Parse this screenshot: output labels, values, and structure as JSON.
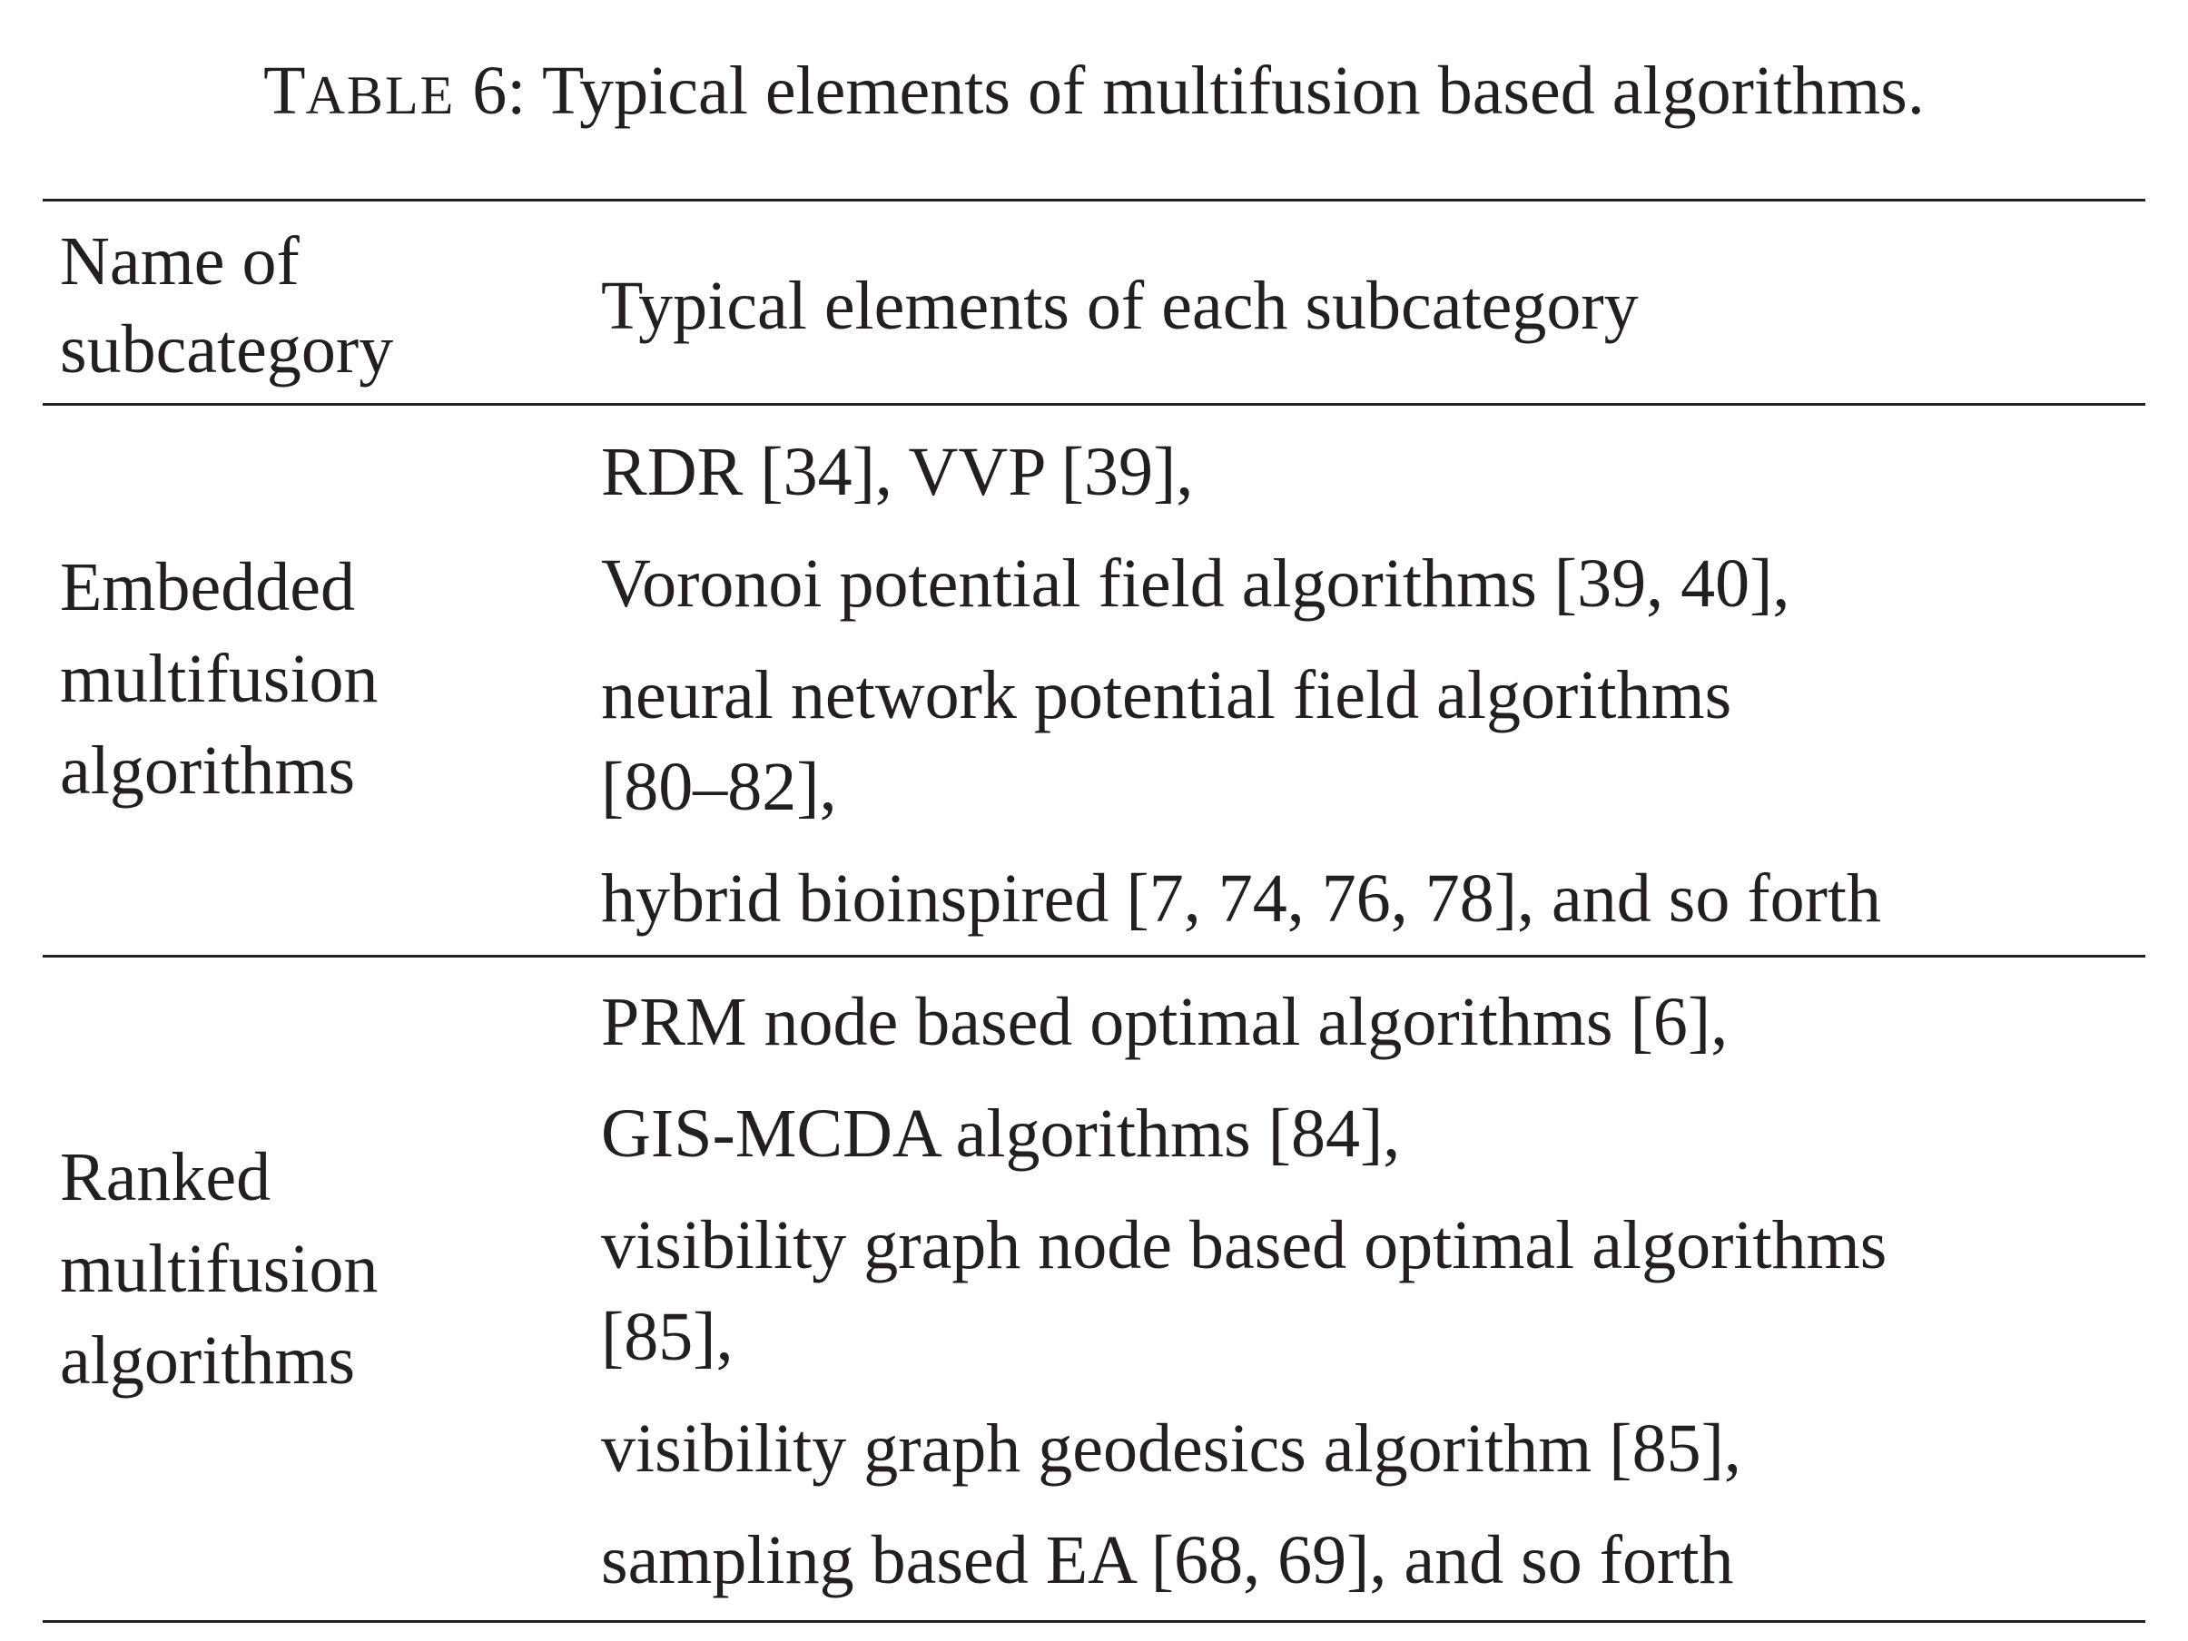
{
  "caption": {
    "label_T": "T",
    "label_rest": "ABLE",
    "number": "6:",
    "text": "Typical elements of multifusion based algorithms."
  },
  "table": {
    "headers": {
      "col1_line1": "Name of",
      "col1_line2": "subcategory",
      "col2": "Typical elements of each subcategory"
    },
    "rows": [
      {
        "name_lines": [
          "Embedded",
          "multifusion",
          "algorithms"
        ],
        "elements": [
          [
            "RDR [34], VVP [39],"
          ],
          [
            "Voronoi potential field algorithms [39, 40],"
          ],
          [
            "neural network potential field algorithms",
            "[80–82],"
          ],
          [
            "hybrid bioinspired [7, 74, 76, 78], and so forth"
          ]
        ]
      },
      {
        "name_lines": [
          "Ranked",
          "multifusion",
          "algorithms"
        ],
        "elements": [
          [
            "PRM node based optimal algorithms [6],"
          ],
          [
            "GIS-MCDA algorithms [84],"
          ],
          [
            "visibility graph node based optimal algorithms",
            "[85],"
          ],
          [
            "visibility graph geodesics algorithm [85],"
          ],
          [
            "sampling based EA [68, 69], and so forth"
          ]
        ]
      }
    ]
  }
}
